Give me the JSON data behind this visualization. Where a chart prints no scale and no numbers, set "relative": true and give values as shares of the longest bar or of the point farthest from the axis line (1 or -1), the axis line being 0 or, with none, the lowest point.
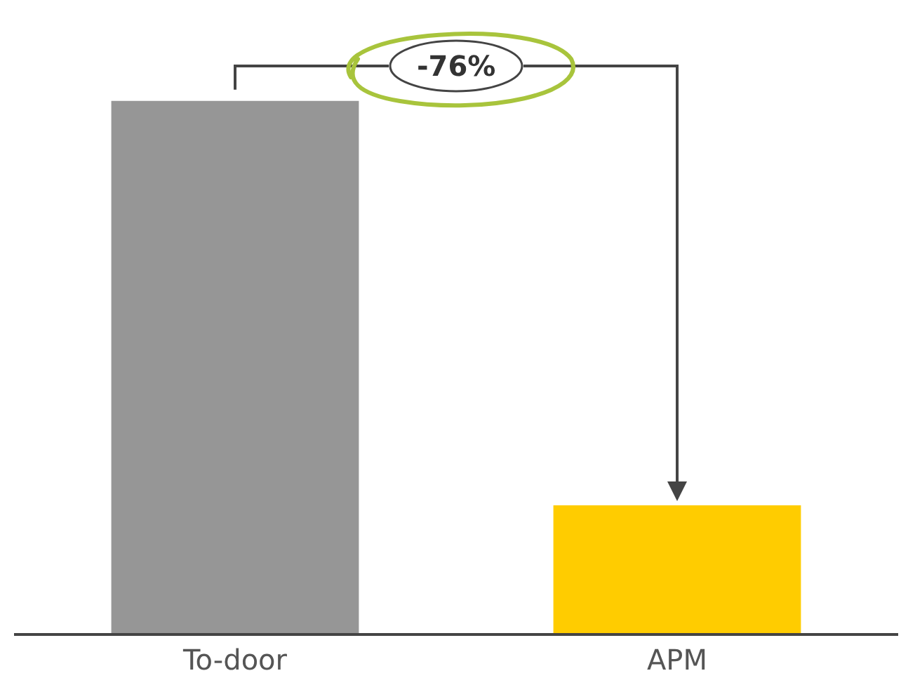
{
  "chart_data": {
    "type": "bar",
    "relative": true,
    "categories": [
      "To-door",
      "APM"
    ],
    "values": [
      1,
      0.24
    ],
    "colors": [
      "#969696",
      "#ffcc00"
    ],
    "annotations": [
      "-76%"
    ]
  }
}
